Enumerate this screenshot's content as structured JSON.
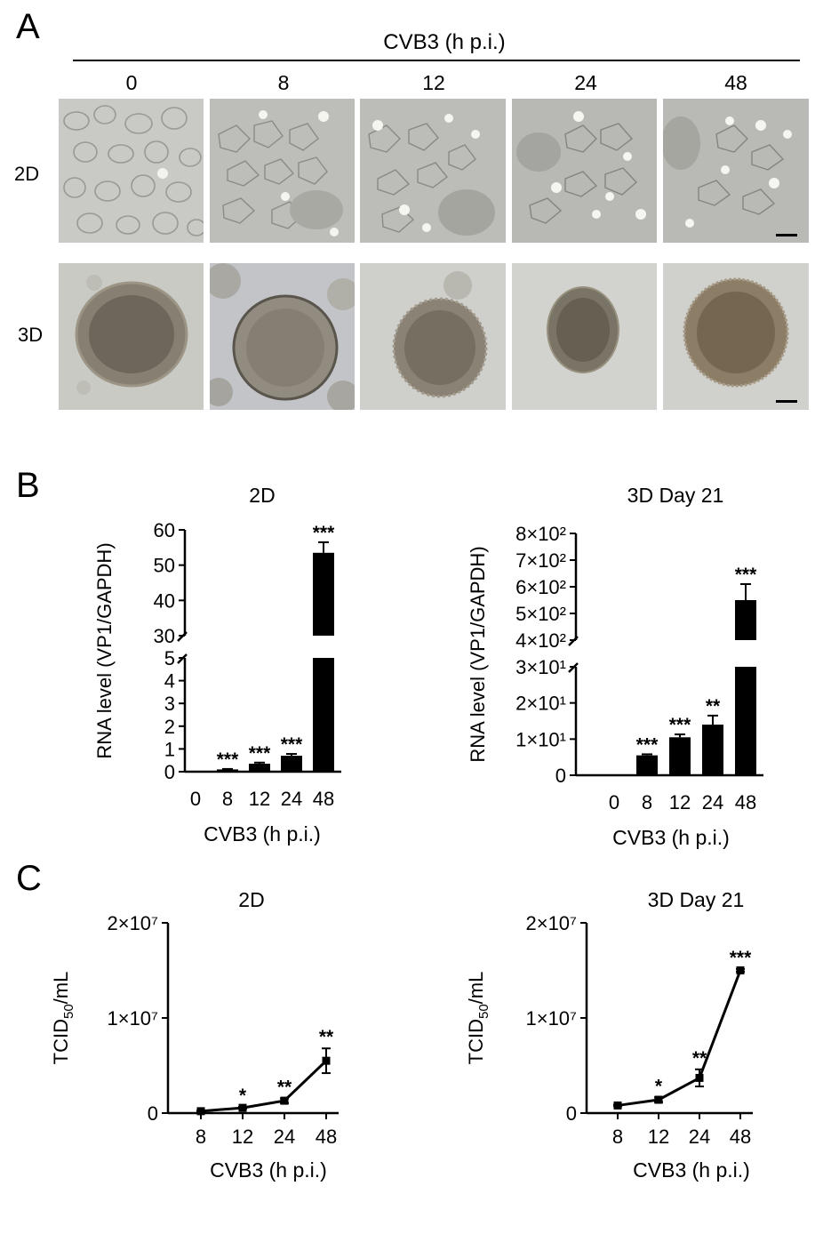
{
  "panels": {
    "a": "A",
    "b": "B",
    "c": "C"
  },
  "panel_a": {
    "header": "CVB3 (h p.i.)",
    "timepoints": [
      "0",
      "8",
      "12",
      "24",
      "48"
    ],
    "rows": [
      "2D",
      "3D"
    ]
  },
  "chart_data": [
    {
      "id": "B-2D",
      "type": "bar",
      "title": "2D",
      "xlabel": "CVB3 (h p.i.)",
      "ylabel": "RNA level (VP1/GAPDH)",
      "categories": [
        "0",
        "8",
        "12",
        "24",
        "48"
      ],
      "values": [
        0,
        0.1,
        0.35,
        0.7,
        53.5
      ],
      "errors": [
        0,
        0.02,
        0.05,
        0.08,
        3.0
      ],
      "significance": [
        "",
        "***",
        "***",
        "***",
        "***"
      ],
      "broken_axis": {
        "lower": [
          0,
          5
        ],
        "upper": [
          30,
          60
        ]
      },
      "yticks_lower": [
        "0",
        "1",
        "2",
        "3",
        "4",
        "5"
      ],
      "yticks_upper": [
        "30",
        "40",
        "50",
        "60"
      ]
    },
    {
      "id": "B-3D",
      "type": "bar",
      "title": "3D Day 21",
      "xlabel": "CVB3 (h p.i.)",
      "ylabel": "RNA level (VP1/GAPDH)",
      "categories": [
        "0",
        "8",
        "12",
        "24",
        "48"
      ],
      "values": [
        0,
        5.5,
        10.5,
        14,
        550
      ],
      "errors": [
        0,
        0.3,
        0.8,
        2.5,
        60
      ],
      "significance": [
        "",
        "***",
        "***",
        "**",
        "***"
      ],
      "broken_axis": {
        "lower": [
          0,
          30
        ],
        "upper": [
          400,
          800
        ]
      },
      "yticks_lower": [
        "0",
        "1×10¹",
        "2×10¹",
        "3×10¹"
      ],
      "yticks_upper": [
        "4×10²",
        "5×10²",
        "6×10²",
        "7×10²",
        "8×10²"
      ]
    },
    {
      "id": "C-2D",
      "type": "line",
      "title": "2D",
      "xlabel": "CVB3 (h p.i.)",
      "ylabel": "TCID50/mL",
      "categories": [
        "8",
        "12",
        "24",
        "48"
      ],
      "values": [
        200000,
        550000,
        1300000,
        5500000
      ],
      "errors": [
        50000,
        100000,
        250000,
        1300000
      ],
      "significance": [
        "",
        "*",
        "**",
        "**"
      ],
      "ylim": [
        0,
        20000000
      ],
      "yticks": [
        "0",
        "1×10⁷",
        "2×10⁷"
      ]
    },
    {
      "id": "C-3D",
      "type": "line",
      "title": "3D Day 21",
      "xlabel": "CVB3 (h p.i.)",
      "ylabel": "TCID50/mL",
      "categories": [
        "8",
        "12",
        "24",
        "48"
      ],
      "values": [
        800000,
        1400000,
        3700000,
        15000000
      ],
      "errors": [
        80000,
        250000,
        900000,
        150000
      ],
      "significance": [
        "",
        "*",
        "**",
        "***"
      ],
      "ylim": [
        0,
        20000000
      ],
      "yticks": [
        "0",
        "1×10⁷",
        "2×10⁷"
      ]
    }
  ]
}
